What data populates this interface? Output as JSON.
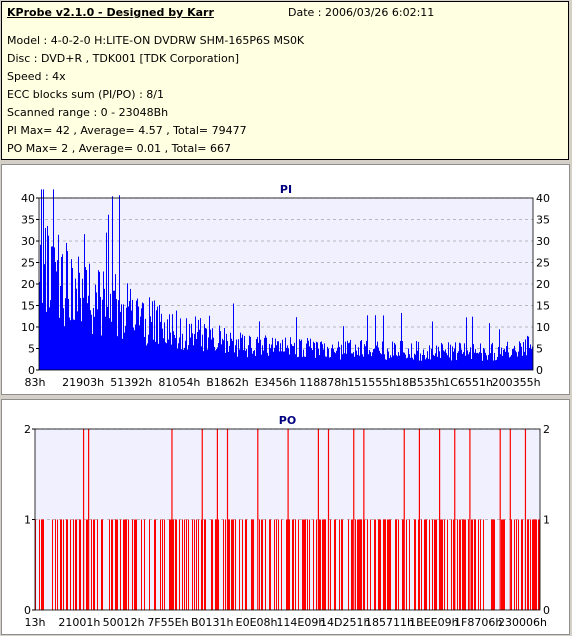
{
  "info": {
    "title": "KProbe v2.1.0 - Designed by Karr",
    "date": "Date : 2006/03/26 6:02:11",
    "lines": [
      "Model : 4-0-2-0 H:LITE-ON DVDRW SHM-165P6S MS0K",
      "Disc : DVD+R , TDK001 [TDK Corporation]",
      "Speed : 4x",
      "ECC blocks sum (PI/PO) : 8/1",
      "Scanned range : 0 - 23048Bh",
      "PI Max= 42 , Average= 4.57 , Total= 79477",
      "PO Max= 2 , Average= 0.01 , Total= 667"
    ]
  },
  "colors": {
    "pi_bar": "#0000ff",
    "po_bar": "#ff0000",
    "plot_bg": "#f0f0ff",
    "title": "#000080",
    "grid": "#808080"
  },
  "chart_data": [
    {
      "type": "bar",
      "title": "PI",
      "ylim": [
        0,
        40
      ],
      "yticks": [
        0,
        5,
        10,
        15,
        20,
        25,
        30,
        35,
        40
      ],
      "xticks": [
        "83h",
        "21903h",
        "51392h",
        "81054h",
        "B1862h",
        "E3456h",
        "118878h",
        "151555h",
        "18B535h",
        "1C6551h",
        "200355h"
      ],
      "grid": "dashed horizontal",
      "max": 42,
      "average": 4.57,
      "envelope": [
        [
          0,
          38
        ],
        [
          0.02,
          30
        ],
        [
          0.05,
          28
        ],
        [
          0.08,
          26
        ],
        [
          0.12,
          22
        ],
        [
          0.16,
          20
        ],
        [
          0.2,
          17
        ],
        [
          0.25,
          14
        ],
        [
          0.3,
          12
        ],
        [
          0.35,
          10
        ],
        [
          0.4,
          8
        ],
        [
          0.5,
          7
        ],
        [
          0.6,
          6.5
        ],
        [
          0.7,
          6.5
        ],
        [
          0.8,
          6
        ],
        [
          0.9,
          6
        ],
        [
          0.97,
          6
        ],
        [
          1,
          9
        ]
      ]
    },
    {
      "type": "bar",
      "title": "PO",
      "ylim": [
        0,
        2
      ],
      "yticks": [
        0,
        1,
        2
      ],
      "xticks": [
        "13h",
        "21001h",
        "50012h",
        "7F55Eh",
        "B0131h",
        "E0E08h",
        "114E09h",
        "14D251h",
        "185711h",
        "1BEE09h",
        "1F8706h",
        "230006h"
      ],
      "grid": "dashed horizontal",
      "max": 2,
      "average": 0.01,
      "value_two_positions": [
        0.095,
        0.105,
        0.27,
        0.33,
        0.36,
        0.38,
        0.44,
        0.5,
        0.56,
        0.58,
        0.63,
        0.65,
        0.73,
        0.76,
        0.8,
        0.83,
        0.86,
        0.92,
        0.94,
        0.97
      ]
    }
  ]
}
